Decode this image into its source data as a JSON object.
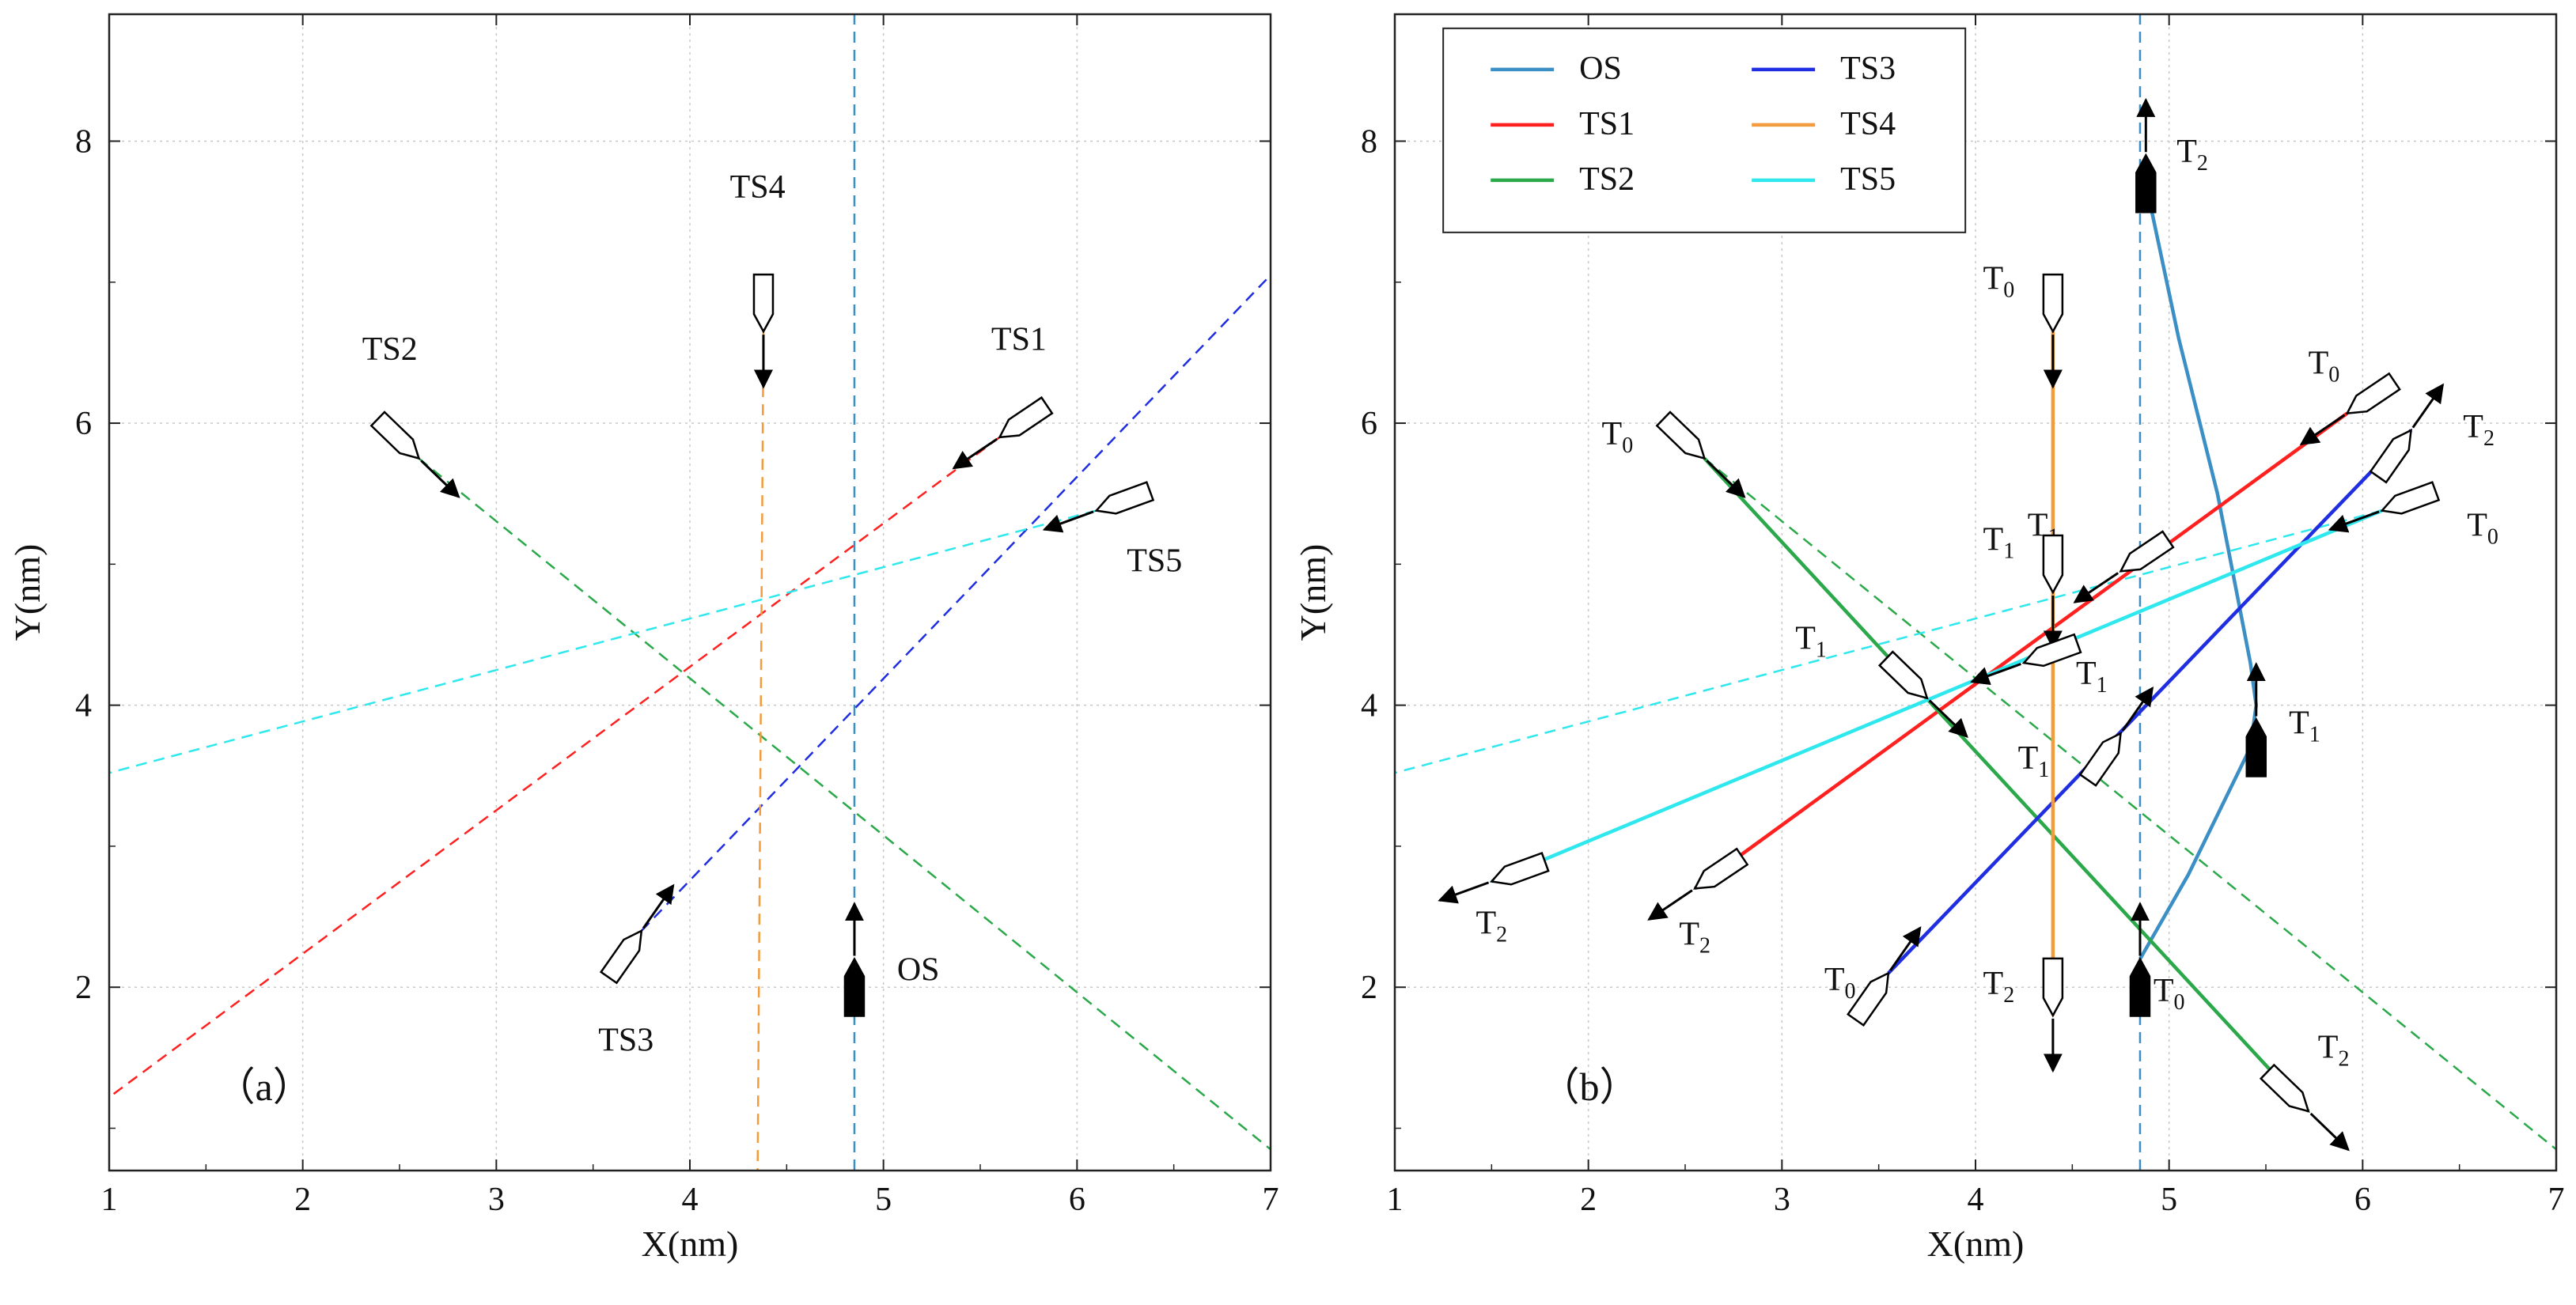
{
  "chart_data": [
    {
      "type": "line",
      "panel_label": "（a）",
      "xlabel": "X(nm)",
      "ylabel": "Y(nm)",
      "xlim": [
        1,
        7
      ],
      "ylim": [
        0.7,
        8.9
      ],
      "xticks": [
        1,
        2,
        3,
        4,
        5,
        6,
        7
      ],
      "yticks": [
        2,
        4,
        6,
        8
      ],
      "grid": true,
      "series": [
        {
          "name": "OS",
          "color": "#3b8fc4",
          "style": "dashed",
          "points": [
            [
              4.85,
              0.7
            ],
            [
              4.85,
              8.9
            ]
          ]
        },
        {
          "name": "TS1",
          "color": "#ff2020",
          "style": "dashed",
          "points": [
            [
              5.6,
              5.9
            ],
            [
              1.0,
              1.22
            ]
          ]
        },
        {
          "name": "TS2",
          "color": "#2aa84a",
          "style": "dashed",
          "points": [
            [
              2.6,
              5.75
            ],
            [
              7.0,
              0.85
            ]
          ]
        },
        {
          "name": "TS3",
          "color": "#1f2ee0",
          "style": "dashed",
          "points": [
            [
              3.75,
              2.4
            ],
            [
              7.0,
              7.05
            ]
          ]
        },
        {
          "name": "TS4",
          "color": "#f39c3d",
          "style": "dashed",
          "points": [
            [
              4.38,
              6.65
            ],
            [
              4.35,
              0.7
            ]
          ]
        },
        {
          "name": "TS5",
          "color": "#2ee8ee",
          "style": "dashed",
          "points": [
            [
              6.1,
              5.38
            ],
            [
              1.0,
              3.52
            ]
          ]
        }
      ],
      "ships": [
        {
          "name": "TS1",
          "x": 5.6,
          "y": 5.9,
          "heading": 236,
          "filled": false,
          "label": "TS1",
          "label_pos": [
            5.7,
            6.52
          ]
        },
        {
          "name": "TS2",
          "x": 2.6,
          "y": 5.75,
          "heading": 134,
          "filled": false,
          "label": "TS2",
          "label_pos": [
            2.45,
            6.45
          ]
        },
        {
          "name": "TS3",
          "x": 3.75,
          "y": 2.4,
          "heading": 35,
          "filled": false,
          "label": "TS3",
          "label_pos": [
            3.67,
            1.55
          ]
        },
        {
          "name": "TS4",
          "x": 4.38,
          "y": 6.65,
          "heading": 180,
          "filled": false,
          "label": "TS4",
          "label_pos": [
            4.35,
            7.6
          ]
        },
        {
          "name": "TS5",
          "x": 6.1,
          "y": 5.38,
          "heading": 250,
          "filled": false,
          "label": "TS5",
          "label_pos": [
            6.4,
            4.95
          ]
        },
        {
          "name": "OS",
          "x": 4.85,
          "y": 2.2,
          "heading": 0,
          "filled": true,
          "label": "OS",
          "label_pos": [
            5.18,
            2.05
          ]
        }
      ]
    },
    {
      "type": "line",
      "panel_label": "（b）",
      "xlabel": "X(nm)",
      "ylabel": "Y(nm)",
      "xlim": [
        1,
        7
      ],
      "ylim": [
        0.7,
        8.9
      ],
      "xticks": [
        1,
        2,
        3,
        4,
        5,
        6,
        7
      ],
      "yticks": [
        2,
        4,
        6,
        8
      ],
      "grid": true,
      "legend": {
        "position": "top-left",
        "entries": [
          {
            "name": "OS",
            "color": "#3b8fc4"
          },
          {
            "name": "TS3",
            "color": "#1f2ee0"
          },
          {
            "name": "TS1",
            "color": "#ff2020"
          },
          {
            "name": "TS4",
            "color": "#f39c3d"
          },
          {
            "name": "TS2",
            "color": "#2aa84a"
          },
          {
            "name": "TS5",
            "color": "#2ee8ee"
          }
        ]
      },
      "planned_routes": [
        {
          "name": "OS-planned",
          "color": "#3b8fc4",
          "points": [
            [
              4.85,
              0.7
            ],
            [
              4.85,
              8.9
            ]
          ]
        },
        {
          "name": "TS2-planned",
          "color": "#2aa84a",
          "points": [
            [
              2.6,
              5.75
            ],
            [
              7.0,
              0.85
            ]
          ]
        },
        {
          "name": "TS5-planned",
          "color": "#2ee8ee",
          "points": [
            [
              6.1,
              5.38
            ],
            [
              1.0,
              3.52
            ]
          ]
        }
      ],
      "series": [
        {
          "name": "OS",
          "color": "#3b8fc4",
          "style": "solid",
          "points": [
            [
              4.85,
              2.2
            ],
            [
              5.1,
              2.8
            ],
            [
              5.42,
              3.7
            ],
            [
              5.45,
              4.0
            ],
            [
              5.42,
              4.3
            ],
            [
              5.25,
              5.5
            ],
            [
              5.05,
              6.6
            ],
            [
              4.88,
              7.7
            ]
          ]
        },
        {
          "name": "TS1",
          "color": "#ff2020",
          "style": "solid",
          "points": [
            [
              5.92,
              6.07
            ],
            [
              2.55,
              2.7
            ]
          ]
        },
        {
          "name": "TS2",
          "color": "#2aa84a",
          "style": "solid",
          "points": [
            [
              2.6,
              5.75
            ],
            [
              5.72,
              1.12
            ]
          ]
        },
        {
          "name": "TS3",
          "color": "#1f2ee0",
          "style": "solid",
          "points": [
            [
              3.55,
              2.1
            ],
            [
              6.25,
              5.95
            ]
          ]
        },
        {
          "name": "TS4",
          "color": "#f39c3d",
          "style": "solid",
          "points": [
            [
              4.4,
              6.65
            ],
            [
              4.4,
              1.8
            ]
          ]
        },
        {
          "name": "TS5",
          "color": "#2ee8ee",
          "style": "solid",
          "points": [
            [
              6.1,
              5.38
            ],
            [
              1.5,
              2.75
            ]
          ]
        }
      ],
      "ships": [
        {
          "name": "OS-T0",
          "x": 4.85,
          "y": 2.2,
          "heading": 0,
          "filled": true,
          "label": "T0",
          "label_pos": [
            5.0,
            1.9
          ]
        },
        {
          "name": "OS-T1",
          "x": 5.45,
          "y": 3.9,
          "heading": 0,
          "filled": true,
          "label": "T1",
          "label_pos": [
            5.7,
            3.8
          ]
        },
        {
          "name": "OS-T2",
          "x": 4.88,
          "y": 7.9,
          "heading": 0,
          "filled": true,
          "label": "T2",
          "label_pos": [
            5.12,
            7.85
          ]
        },
        {
          "name": "TS1-T0",
          "x": 5.92,
          "y": 6.07,
          "heading": 236,
          "filled": false,
          "label": "T0",
          "label_pos": [
            5.8,
            6.35
          ]
        },
        {
          "name": "TS1-T1",
          "x": 4.75,
          "y": 4.95,
          "heading": 236,
          "filled": false,
          "label": "T1",
          "label_pos": [
            4.35,
            5.2
          ]
        },
        {
          "name": "TS1-T2",
          "x": 2.55,
          "y": 2.7,
          "heading": 236,
          "filled": false,
          "label": "T2",
          "label_pos": [
            2.55,
            2.3
          ]
        },
        {
          "name": "TS2-T0",
          "x": 2.6,
          "y": 5.75,
          "heading": 134,
          "filled": false,
          "label": "T0",
          "label_pos": [
            2.15,
            5.85
          ]
        },
        {
          "name": "TS2-T1",
          "x": 3.75,
          "y": 4.05,
          "heading": 134,
          "filled": false,
          "label": "T1",
          "label_pos": [
            3.15,
            4.4
          ]
        },
        {
          "name": "TS2-T2",
          "x": 5.72,
          "y": 1.12,
          "heading": 134,
          "filled": false,
          "label": "T2",
          "label_pos": [
            5.85,
            1.5
          ]
        },
        {
          "name": "TS3-T0",
          "x": 3.55,
          "y": 2.1,
          "heading": 35,
          "filled": false,
          "label": "T0",
          "label_pos": [
            3.3,
            1.98
          ]
        },
        {
          "name": "TS3-T1",
          "x": 4.75,
          "y": 3.8,
          "heading": 35,
          "filled": false,
          "label": "T1",
          "label_pos": [
            4.3,
            3.55
          ]
        },
        {
          "name": "TS3-T2",
          "x": 6.25,
          "y": 5.95,
          "heading": 35,
          "filled": false,
          "label": "T2",
          "label_pos": [
            6.6,
            5.9
          ]
        },
        {
          "name": "TS4-T0",
          "x": 4.4,
          "y": 6.65,
          "heading": 180,
          "filled": false,
          "label": "T0",
          "label_pos": [
            4.12,
            6.95
          ]
        },
        {
          "name": "TS4-T1",
          "x": 4.4,
          "y": 4.8,
          "heading": 180,
          "filled": false,
          "label": "T1",
          "label_pos": [
            4.12,
            5.1
          ]
        },
        {
          "name": "TS4-T2",
          "x": 4.4,
          "y": 1.8,
          "heading": 180,
          "filled": false,
          "label": "T2",
          "label_pos": [
            4.12,
            1.95
          ]
        },
        {
          "name": "TS5-T0",
          "x": 6.1,
          "y": 5.38,
          "heading": 250,
          "filled": false,
          "label": "T0",
          "label_pos": [
            6.62,
            5.2
          ]
        },
        {
          "name": "TS5-T1",
          "x": 4.25,
          "y": 4.3,
          "heading": 250,
          "filled": false,
          "label": "T1",
          "label_pos": [
            4.6,
            4.15
          ]
        },
        {
          "name": "TS5-T2",
          "x": 1.5,
          "y": 2.75,
          "heading": 250,
          "filled": false,
          "label": "T2",
          "label_pos": [
            1.5,
            2.38
          ]
        }
      ]
    }
  ]
}
